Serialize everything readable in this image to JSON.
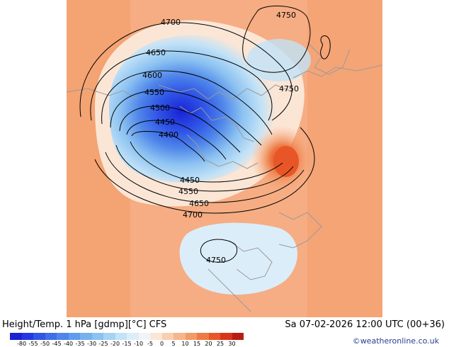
{
  "title": "Height/Temp. 1 hPa [gdmp][°C] CFS",
  "valid_time": "Sa 07-02-2026 12:00 UTC (00+36)",
  "credit": "©weatheronline.co.uk",
  "colors": {
    "land_outline": "#9a9a9a",
    "contour": "#000000",
    "background_warm": "#f6ad83"
  },
  "contours": {
    "c4700_top": "4700",
    "c4650_top": "4650",
    "c4600_top": "4600",
    "c4550_top": "4550",
    "c4500": "4500",
    "c4450_in": "4450",
    "c4400": "4400",
    "c4450_bot": "4450",
    "c4550_bot": "4550",
    "c4650_bot": "4650",
    "c4700_bot": "4700",
    "c4750_top": "4750",
    "c4750_east": "4750",
    "c4750_south": "4750"
  },
  "colorbar": {
    "ticks": [
      "-80",
      "-55",
      "-50",
      "-45",
      "-40",
      "-35",
      "-30",
      "-25",
      "-20",
      "-15",
      "-10",
      "-5",
      "0",
      "5",
      "10",
      "15",
      "20",
      "25",
      "30"
    ],
    "colors": [
      "#1a22d6",
      "#2338e0",
      "#2f55e6",
      "#3f6fe8",
      "#4f86ea",
      "#619cec",
      "#76b0ee",
      "#8cc2f1",
      "#a6d3f4",
      "#c2e2f7",
      "#dcedfa",
      "#f0f4f8",
      "#fbe6d6",
      "#f9cfb0",
      "#f6b58a",
      "#f39a66",
      "#ee7a44",
      "#e85628",
      "#d8341a",
      "#b81d12"
    ]
  }
}
